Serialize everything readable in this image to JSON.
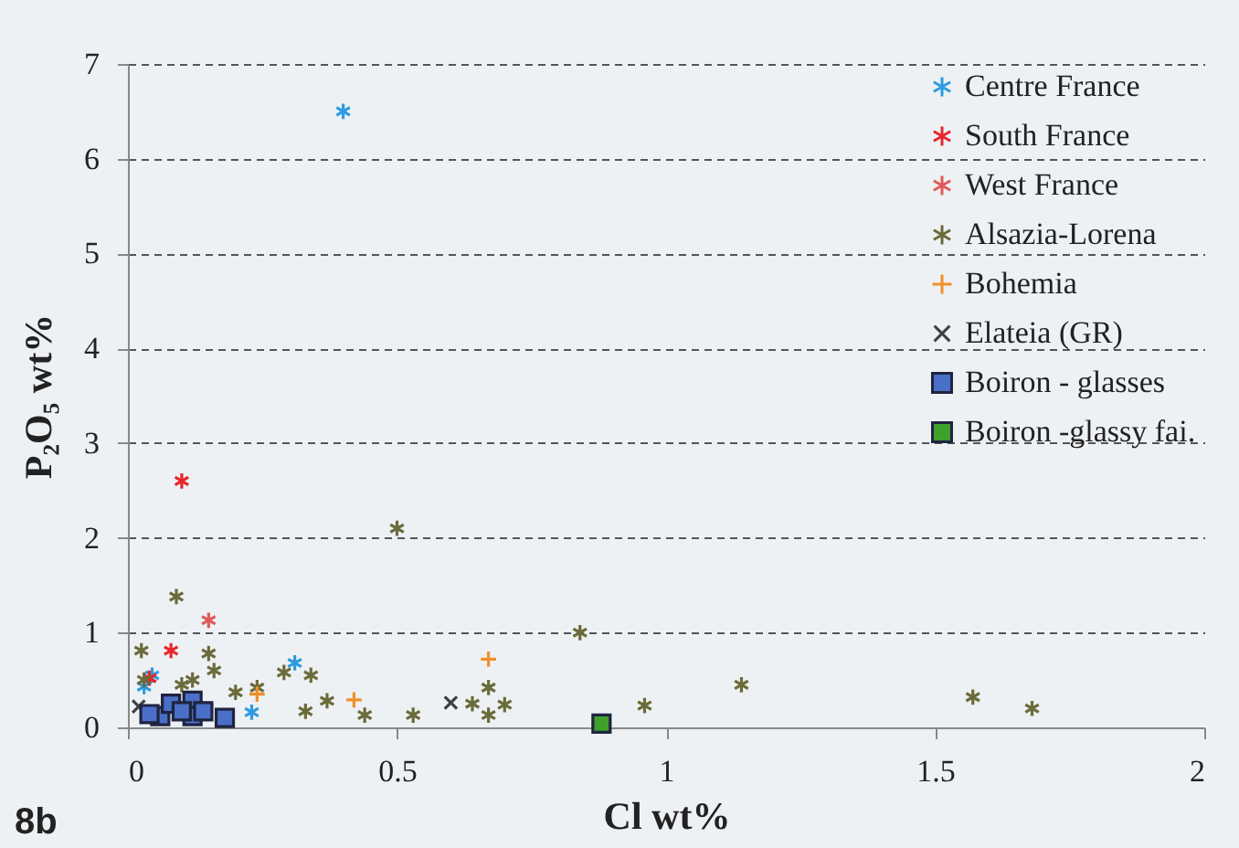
{
  "chart_data": {
    "type": "scatter",
    "xlabel": "Cl wt%",
    "ylabel": "P₂O₅ wt%",
    "annotations": [
      "8b"
    ],
    "xlim": [
      0,
      2
    ],
    "ylim": [
      0,
      7
    ],
    "xticks": [
      {
        "value": 0,
        "label": "0"
      },
      0.5,
      {
        "value": 1,
        "label": "1"
      },
      1.5,
      {
        "value": 2,
        "label": "2"
      }
    ],
    "yticks": [
      0,
      1,
      2,
      3,
      4,
      5,
      6,
      7
    ],
    "grid": "y",
    "legend": "top right",
    "series": [
      {
        "name": "Centre France",
        "color": "#2e9be0",
        "x": [
          0.4,
          0.31,
          0.23,
          0.045,
          0.03
        ],
        "values": [
          6.5,
          0.68,
          0.16,
          0.55,
          0.43
        ]
      },
      {
        "name": "South France",
        "color": "#e8262a",
        "x": [
          0.1,
          0.08,
          0.04
        ],
        "values": [
          2.6,
          0.81,
          0.52
        ]
      },
      {
        "name": "West France",
        "color": "#e05a5a",
        "x": [
          0.15
        ],
        "values": [
          1.13
        ]
      },
      {
        "name": "Alsazia-Lorena",
        "color": "#6b6b3a",
        "x": [
          0.5,
          0.84,
          0.96,
          1.14,
          1.57,
          1.68,
          0.09,
          0.025,
          0.15,
          0.16,
          0.03,
          0.2,
          0.24,
          0.29,
          0.34,
          0.37,
          0.33,
          0.44,
          0.53,
          0.64,
          0.67,
          0.67,
          0.7,
          0.1,
          0.12
        ],
        "values": [
          2.1,
          1.0,
          0.23,
          0.45,
          0.32,
          0.2,
          1.38,
          0.81,
          0.78,
          0.6,
          0.5,
          0.37,
          0.42,
          0.58,
          0.55,
          0.28,
          0.17,
          0.13,
          0.13,
          0.25,
          0.42,
          0.13,
          0.24,
          0.45,
          0.5
        ]
      },
      {
        "name": "Bohemia",
        "color": "#f0902a",
        "marker": "cross",
        "x": [
          0.67,
          0.42,
          0.24
        ],
        "values": [
          0.72,
          0.29,
          0.35
        ]
      },
      {
        "name": "Elateia (GR)",
        "color": "#404040",
        "marker": "x",
        "x": [
          0.6,
          0.02
        ],
        "values": [
          0.26,
          0.22
        ]
      },
      {
        "name": "Boiron - glasses",
        "color": "#4a6fc8",
        "marker": "square",
        "x": [
          0.06,
          0.08,
          0.12,
          0.12,
          0.14,
          0.18,
          0.04,
          0.1
        ],
        "values": [
          0.12,
          0.25,
          0.28,
          0.12,
          0.17,
          0.1,
          0.14,
          0.17
        ]
      },
      {
        "name": "Boiron -glassy fai.",
        "color": "#3fa02a",
        "marker": "square",
        "x": [
          0.88
        ],
        "values": [
          0.04
        ]
      }
    ]
  }
}
